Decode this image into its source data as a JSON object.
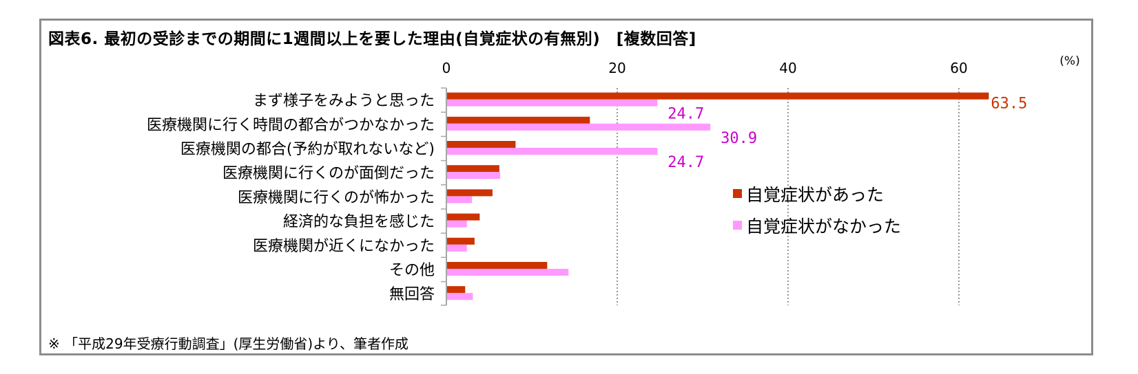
{
  "title": "図表6. 最初の受診までの期間に1週間以上を要した理由(自覚症状の有無別)　[複数回答]",
  "source": "※ 「平成29年受療行動調査」(厚生労働省)より、筆者作成",
  "unit": "(%)",
  "chart_data": {
    "type": "bar",
    "orientation": "horizontal",
    "categories": [
      "まず様子をみようと思った",
      "医療機関に行く時間の都合がつかなかった",
      "医療機関の都合(予約が取れないなど)",
      "医療機関に行くのが面倒だった",
      "医療機関に行くのが怖かった",
      "経済的な負担を感じた",
      "医療機関が近くになかった",
      "その他",
      "無回答"
    ],
    "series": [
      {
        "name": "自覚症状があった",
        "color": "#cc3300",
        "values": [
          63.5,
          16.8,
          8.1,
          6.2,
          5.4,
          3.9,
          3.3,
          11.8,
          2.2
        ],
        "labels": [
          "63.5",
          "",
          "",
          "",
          "",
          "",
          "",
          "",
          ""
        ]
      },
      {
        "name": "自覚症状がなかった",
        "color": "#ff99ff",
        "values": [
          24.7,
          30.9,
          24.7,
          6.3,
          3.0,
          2.4,
          2.4,
          14.3,
          3.1
        ],
        "labels": [
          "24.7",
          "30.9",
          "24.7",
          "",
          "",
          "",
          "",
          "",
          ""
        ]
      }
    ],
    "label_colors": [
      "#cc3300",
      "#cc00cc"
    ],
    "xlim": [
      0,
      65
    ],
    "ticks": [
      0,
      20,
      40,
      60
    ],
    "grid": "dotted vertical",
    "legend_position": "right"
  }
}
